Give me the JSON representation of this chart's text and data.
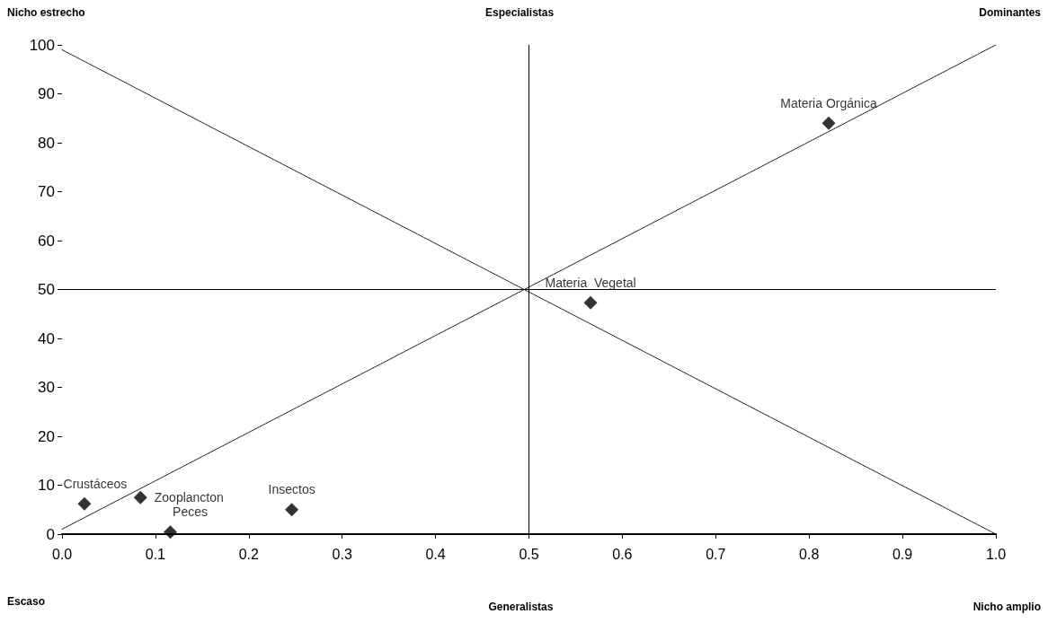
{
  "chart_data": {
    "type": "scatter",
    "annotations": [
      "Nicho estrecho",
      "Especialistas",
      "Dominantes",
      "Escaso",
      "Generalistas",
      "Nicho amplio"
    ],
    "series": [
      {
        "type": "line",
        "x": [
          0,
          1
        ],
        "values": [
          99,
          0
        ],
        "color": "#000000",
        "line_style": "dotted",
        "marker": "none"
      },
      {
        "type": "line",
        "x": [
          0,
          1
        ],
        "values": [
          1,
          100
        ],
        "color": "#000000",
        "line_style": "dotted",
        "marker": "none"
      },
      {
        "name": "Crustáceos",
        "x": [
          0.024
        ],
        "values": [
          6.2
        ],
        "color": "#000000"
      },
      {
        "name": "Zooplancton",
        "x": [
          0.084
        ],
        "values": [
          7.5
        ],
        "color": "#000000"
      },
      {
        "name": "Peces",
        "x": [
          0.116
        ],
        "values": [
          0.4
        ],
        "color": "#000000"
      },
      {
        "name": "Insectos",
        "x": [
          0.246
        ],
        "values": [
          5.0
        ],
        "color": "#000000"
      },
      {
        "name": "Materia  Vegetal",
        "x": [
          0.566
        ],
        "values": [
          47.3
        ],
        "color": "#000000"
      },
      {
        "name": "Materia Orgánica",
        "x": [
          0.821
        ],
        "values": [
          84.0
        ],
        "color": "#000000"
      }
    ],
    "marker": "diamond",
    "xlim": [
      0,
      1
    ],
    "xticks": [
      {
        "value": 0,
        "label": "0.0"
      },
      0.1,
      0.2,
      0.3,
      0.4,
      0.5,
      0.6,
      0.7,
      0.8,
      0.9,
      {
        "value": 1,
        "label": "1.0"
      }
    ],
    "ylim": [
      0,
      100
    ],
    "yticks": [
      0,
      10,
      20,
      30,
      40,
      50,
      60,
      70,
      80,
      90,
      100
    ],
    "ref_lines": [
      {
        "axis": "x",
        "value": 0.5,
        "color": "#000000"
      },
      {
        "axis": "y",
        "value": 50,
        "color": "#000000"
      }
    ],
    "grid": false
  }
}
